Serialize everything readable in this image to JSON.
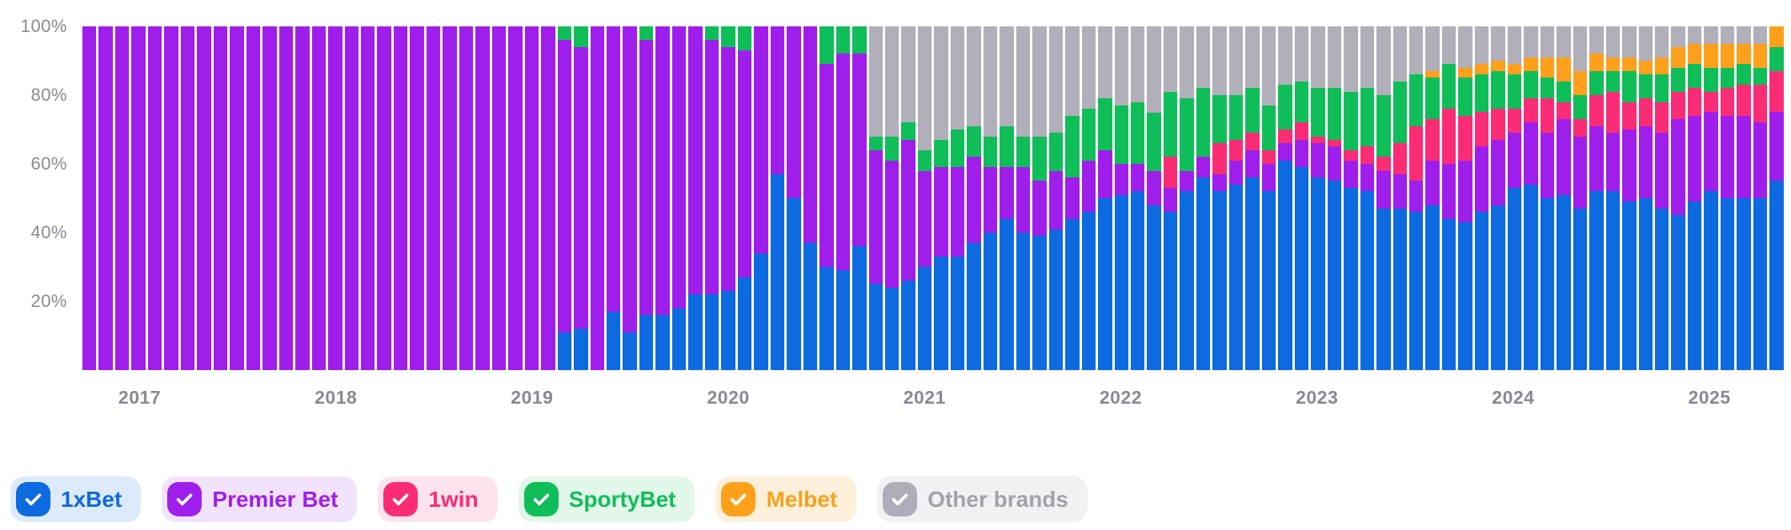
{
  "page": {
    "background": "#ffffff",
    "description": "100% stacked monthly market-share bar chart of betting brands with toggleable legend chips"
  },
  "chart_data": {
    "type": "bar",
    "stacked": true,
    "normalized": "percent",
    "granularity": "monthly",
    "x_start": "2016-10",
    "x_end": "2025-05",
    "months_count": 104,
    "ylim": [
      0,
      100
    ],
    "grid": false,
    "y_tick_labels_top_down": [
      "100%",
      "80%",
      "60%",
      "40%",
      "20%"
    ],
    "x_ticks": [
      {
        "label": "2017",
        "month_index": 3
      },
      {
        "label": "2018",
        "month_index": 15
      },
      {
        "label": "2019",
        "month_index": 27
      },
      {
        "label": "2020",
        "month_index": 39
      },
      {
        "label": "2021",
        "month_index": 51
      },
      {
        "label": "2022",
        "month_index": 63
      },
      {
        "label": "2023",
        "month_index": 75
      },
      {
        "label": "2024",
        "month_index": 87
      },
      {
        "label": "2025",
        "month_index": 99
      }
    ],
    "stack_order_bottom_to_top": [
      "1xBet",
      "Premier Bet",
      "1win",
      "SportyBet",
      "Melbet",
      "Other brands"
    ],
    "series": [
      {
        "name": "1xBet",
        "color": "#0d6ae0",
        "values": [
          0,
          0,
          0,
          0,
          0,
          0,
          0,
          0,
          0,
          0,
          0,
          0,
          0,
          0,
          0,
          0,
          0,
          0,
          0,
          0,
          0,
          0,
          0,
          0,
          0,
          0,
          0,
          0,
          0,
          11,
          12,
          0,
          17,
          11,
          16,
          16,
          18,
          22,
          22,
          23,
          27,
          34,
          57,
          50,
          37,
          30,
          29,
          36,
          25,
          24,
          26,
          30,
          33,
          33,
          37,
          40,
          44,
          40,
          39,
          41,
          44,
          46,
          50,
          51,
          52,
          48,
          46,
          52,
          56,
          52,
          54,
          56,
          52,
          61,
          59,
          56,
          55,
          53,
          52,
          47,
          47,
          46,
          48,
          44,
          43,
          46,
          48,
          53,
          54,
          50,
          51,
          47,
          52,
          52,
          49,
          50,
          47,
          45,
          49,
          52,
          50,
          50,
          50,
          55
        ]
      },
      {
        "name": "Premier Bet",
        "color": "#a01eec",
        "values": [
          100,
          100,
          100,
          100,
          100,
          100,
          100,
          100,
          100,
          100,
          100,
          100,
          100,
          100,
          100,
          100,
          100,
          100,
          100,
          100,
          100,
          100,
          100,
          100,
          100,
          100,
          100,
          100,
          100,
          85,
          82,
          100,
          83,
          89,
          80,
          84,
          82,
          78,
          74,
          71,
          66,
          66,
          43,
          50,
          63,
          59,
          63,
          56,
          39,
          37,
          41,
          28,
          26,
          26,
          25,
          19,
          15,
          19,
          16,
          17,
          12,
          15,
          14,
          9,
          8,
          10,
          7,
          6,
          6,
          5,
          7,
          8,
          8,
          5,
          8,
          10,
          10,
          8,
          8,
          11,
          10,
          9,
          13,
          16,
          18,
          19,
          19,
          16,
          18,
          19,
          22,
          21,
          19,
          17,
          21,
          21,
          22,
          28,
          25,
          23,
          24,
          24,
          22,
          20
        ]
      },
      {
        "name": "1win",
        "color": "#fb2c76",
        "values": [
          0,
          0,
          0,
          0,
          0,
          0,
          0,
          0,
          0,
          0,
          0,
          0,
          0,
          0,
          0,
          0,
          0,
          0,
          0,
          0,
          0,
          0,
          0,
          0,
          0,
          0,
          0,
          0,
          0,
          0,
          0,
          0,
          0,
          0,
          0,
          0,
          0,
          0,
          0,
          0,
          0,
          0,
          0,
          0,
          0,
          0,
          0,
          0,
          0,
          0,
          0,
          0,
          0,
          0,
          0,
          0,
          0,
          0,
          0,
          0,
          0,
          0,
          0,
          0,
          0,
          0,
          9,
          0,
          0,
          9,
          6,
          5,
          4,
          4,
          5,
          2,
          2,
          3,
          5,
          4,
          9,
          16,
          12,
          16,
          13,
          10,
          9,
          7,
          7,
          10,
          5,
          5,
          9,
          12,
          8,
          8,
          9,
          8,
          8,
          6,
          8,
          9,
          11,
          12
        ]
      },
      {
        "name": "SportyBet",
        "color": "#0fbe58",
        "values": [
          0,
          0,
          0,
          0,
          0,
          0,
          0,
          0,
          0,
          0,
          0,
          0,
          0,
          0,
          0,
          0,
          0,
          0,
          0,
          0,
          0,
          0,
          0,
          0,
          0,
          0,
          0,
          0,
          0,
          4,
          6,
          0,
          0,
          0,
          4,
          0,
          0,
          0,
          4,
          6,
          7,
          0,
          0,
          0,
          0,
          11,
          8,
          8,
          4,
          7,
          5,
          6,
          8,
          11,
          9,
          9,
          12,
          9,
          13,
          11,
          18,
          15,
          15,
          17,
          18,
          17,
          19,
          21,
          20,
          14,
          13,
          13,
          13,
          13,
          12,
          14,
          15,
          17,
          17,
          18,
          18,
          15,
          12,
          13,
          11,
          11,
          11,
          10,
          8,
          6,
          6,
          7,
          7,
          6,
          9,
          7,
          8,
          7,
          7,
          7,
          6,
          6,
          5,
          7
        ]
      },
      {
        "name": "Melbet",
        "color": "#ffa01c",
        "values": [
          0,
          0,
          0,
          0,
          0,
          0,
          0,
          0,
          0,
          0,
          0,
          0,
          0,
          0,
          0,
          0,
          0,
          0,
          0,
          0,
          0,
          0,
          0,
          0,
          0,
          0,
          0,
          0,
          0,
          0,
          0,
          0,
          0,
          0,
          0,
          0,
          0,
          0,
          0,
          0,
          0,
          0,
          0,
          0,
          0,
          0,
          0,
          0,
          0,
          0,
          0,
          0,
          0,
          0,
          0,
          0,
          0,
          0,
          0,
          0,
          0,
          0,
          0,
          0,
          0,
          0,
          0,
          0,
          0,
          0,
          0,
          0,
          0,
          0,
          0,
          0,
          0,
          0,
          0,
          0,
          0,
          0,
          2,
          0,
          3,
          3,
          3,
          3,
          4,
          6,
          7,
          7,
          5,
          4,
          4,
          4,
          5,
          6,
          6,
          7,
          7,
          6,
          7,
          6
        ]
      },
      {
        "name": "Other brands",
        "color": "#b1afba",
        "values": [
          0,
          0,
          0,
          0,
          0,
          0,
          0,
          0,
          0,
          0,
          0,
          0,
          0,
          0,
          0,
          0,
          0,
          0,
          0,
          0,
          0,
          0,
          0,
          0,
          0,
          0,
          0,
          0,
          0,
          0,
          0,
          0,
          0,
          0,
          0,
          0,
          0,
          0,
          0,
          0,
          0,
          0,
          0,
          0,
          0,
          0,
          0,
          0,
          32,
          32,
          28,
          36,
          33,
          30,
          29,
          32,
          29,
          32,
          32,
          31,
          26,
          24,
          21,
          23,
          22,
          25,
          19,
          21,
          18,
          20,
          20,
          18,
          23,
          17,
          16,
          18,
          18,
          19,
          18,
          20,
          16,
          14,
          13,
          11,
          12,
          11,
          10,
          11,
          9,
          9,
          9,
          13,
          8,
          9,
          9,
          10,
          9,
          6,
          5,
          5,
          5,
          5,
          5,
          0
        ]
      }
    ]
  },
  "legend": {
    "items": [
      {
        "label": "1xBet",
        "checked": true,
        "box_color": "#0d6ae0",
        "chip_bg": "#dceafb",
        "text_color": "#0d6ae0"
      },
      {
        "label": "Premier Bet",
        "checked": true,
        "box_color": "#a01eec",
        "chip_bg": "#f2e3fd",
        "text_color": "#a01eec"
      },
      {
        "label": "1win",
        "checked": true,
        "box_color": "#fb2c76",
        "chip_bg": "#fde3ed",
        "text_color": "#fb2c76"
      },
      {
        "label": "SportyBet",
        "checked": true,
        "box_color": "#0fbe58",
        "chip_bg": "#e2f6e9",
        "text_color": "#0fbe58"
      },
      {
        "label": "Melbet",
        "checked": true,
        "box_color": "#ffa01c",
        "chip_bg": "#fdf0db",
        "text_color": "#f9a11b"
      },
      {
        "label": "Other brands",
        "checked": true,
        "box_color": "#afadb9",
        "chip_bg": "#f1f1f4",
        "text_color": "#a3a1ac"
      }
    ]
  }
}
